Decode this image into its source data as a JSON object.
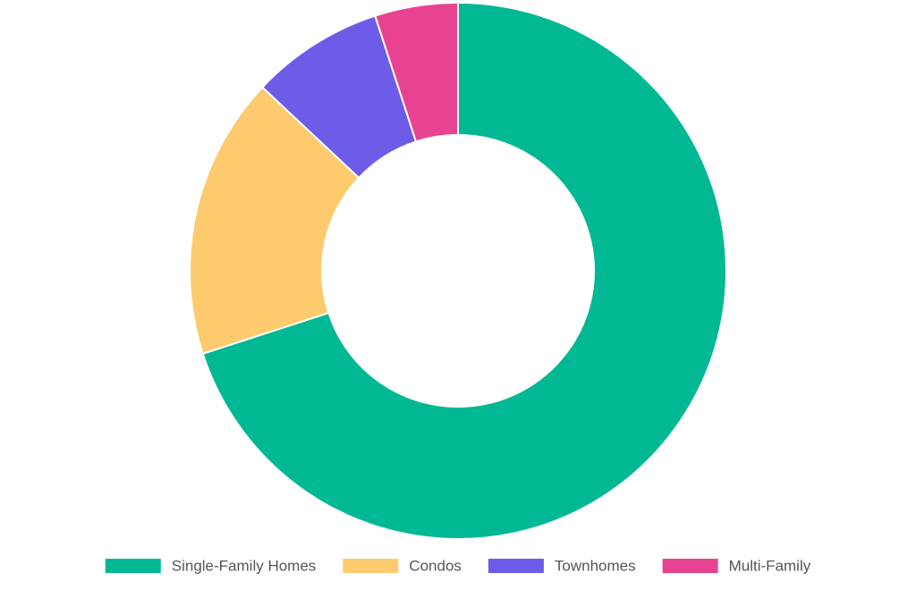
{
  "chart_data": {
    "type": "doughnut",
    "categories": [
      "Single-Family Homes",
      "Condos",
      "Townhomes",
      "Multi-Family"
    ],
    "values": [
      70,
      17,
      8,
      5
    ],
    "colors": [
      "#00b894",
      "#fdcb6e",
      "#6c5ce7",
      "#e84393"
    ],
    "legend": "bottom"
  }
}
